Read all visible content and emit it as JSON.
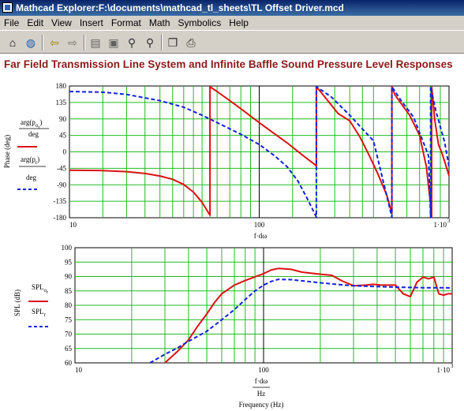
{
  "window": {
    "title": "Mathcad Explorer:F:\\documents\\mathcad_tl_sheets\\TL Offset Driver.mcd"
  },
  "menu": [
    "File",
    "Edit",
    "View",
    "Insert",
    "Format",
    "Math",
    "Symbolics",
    "Help"
  ],
  "toolbar": {
    "icons": [
      "home-icon",
      "globe-icon",
      "back-arrow-icon",
      "forward-arrow-icon",
      "open-icon",
      "save-icon",
      "binoculars-find-icon",
      "binoculars-find-next-icon",
      "copy-icon",
      "print-icon"
    ]
  },
  "document": {
    "heading": "Far Field Transmission Line System and Infinite Baffle Sound Pressure Level Responses"
  },
  "colors": {
    "red": "#dd1111",
    "blue": "#1122dd",
    "grid": "#22bb22",
    "heading": "#8b1a1a"
  },
  "chart_data": [
    {
      "type": "line",
      "xscale": "log",
      "xlim": [
        10,
        1000
      ],
      "ylim": [
        -180,
        180
      ],
      "xticks": [
        "10",
        "100",
        "1·10"
      ],
      "xtick_exp": "3",
      "yticks": [
        "180",
        "135",
        "90",
        "45",
        "0",
        "-45",
        "-90",
        "-135",
        "-180"
      ],
      "ylabel": "Phase (deg)",
      "xlabel": "f·dω",
      "legend": [
        {
          "num": "arg(p",
          "sub": "o",
          "subsub": "r",
          "den": "deg"
        },
        {
          "num": "arg(p",
          "sub": "r",
          "den": "deg"
        }
      ],
      "series": [
        {
          "color": "#dd1111",
          "x": [
            10,
            15,
            20,
            25,
            30,
            35,
            40,
            45,
            50,
            55,
            55.01,
            60,
            70,
            80,
            100,
            120,
            140,
            170,
            200,
            200.01,
            220,
            260,
            300,
            340,
            380,
            420,
            470,
            500,
            500.01,
            520,
            560,
            620,
            700,
            760,
            800,
            810,
            810.01,
            820,
            840,
            880,
            920,
            960,
            1000
          ],
          "y": [
            -50,
            -51,
            -54,
            -59,
            -66,
            -75,
            -89,
            -110,
            -138,
            -173,
            178,
            165,
            140,
            118,
            80,
            50,
            25,
            -10,
            -38,
            178,
            152,
            105,
            85,
            40,
            -10,
            -58,
            -118,
            -168,
            178,
            155,
            132,
            100,
            45,
            -40,
            -145,
            -178,
            178,
            150,
            90,
            20,
            -5,
            -35,
            -65
          ]
        },
        {
          "color": "#1122dd",
          "x": [
            10,
            15,
            20,
            30,
            40,
            50,
            60,
            70,
            80,
            100,
            120,
            140,
            160,
            180,
            200,
            200.01,
            240,
            300,
            400,
            500,
            500.01,
            560,
            650,
            780,
            800,
            800.01,
            850,
            950,
            1000
          ],
          "y": [
            165,
            163,
            157,
            140,
            122,
            100,
            80,
            63,
            48,
            20,
            -10,
            -40,
            -80,
            -130,
            -178,
            178,
            150,
            100,
            30,
            -178,
            178,
            140,
            95,
            -10,
            -178,
            178,
            115,
            25,
            -40
          ]
        }
      ]
    },
    {
      "type": "line",
      "xscale": "log",
      "xlim": [
        10,
        1000
      ],
      "ylim": [
        60,
        100
      ],
      "xticks": [
        "10",
        "100",
        "1·10"
      ],
      "xtick_exp": "3",
      "yticks": [
        "100",
        "95",
        "90",
        "85",
        "80",
        "75",
        "70",
        "65",
        "60"
      ],
      "ylabel": "SPL (dB)",
      "xlabel": "f·dω",
      "xlabel_den": "Hz",
      "xlabel2": "Frequency (Hz)",
      "legend": [
        {
          "text": "SPL",
          "sub": "o",
          "subsub": "r"
        },
        {
          "text": "SPL",
          "sub": "r"
        }
      ],
      "series": [
        {
          "color": "#dd1111",
          "x": [
            30,
            35,
            40,
            45,
            50,
            55,
            60,
            70,
            80,
            100,
            110,
            120,
            140,
            160,
            200,
            230,
            260,
            300,
            350,
            380,
            420,
            500,
            550,
            600,
            650,
            700,
            750,
            800,
            850,
            900,
            950,
            1000
          ],
          "y": [
            60,
            64,
            68,
            73,
            77,
            81,
            84,
            87,
            88.6,
            91,
            92.3,
            92.8,
            92.5,
            91.5,
            90.8,
            90.4,
            88.5,
            86.8,
            87,
            87.3,
            87,
            87,
            84,
            83,
            88,
            89.8,
            89.2,
            89.8,
            84,
            83.5,
            84,
            84
          ]
        },
        {
          "color": "#1122dd",
          "x": [
            25,
            30,
            35,
            40,
            50,
            60,
            70,
            80,
            90,
            100,
            110,
            120,
            140,
            160,
            200,
            250,
            300,
            400,
            500,
            600,
            700,
            800,
            900,
            1000
          ],
          "y": [
            60,
            63,
            65.2,
            67.5,
            71,
            75,
            78.5,
            82,
            85,
            87,
            88.3,
            89,
            88.9,
            88.5,
            87.8,
            87.2,
            86.8,
            86.5,
            86.3,
            86.2,
            86.1,
            86.1,
            86.1,
            86
          ]
        }
      ]
    }
  ]
}
